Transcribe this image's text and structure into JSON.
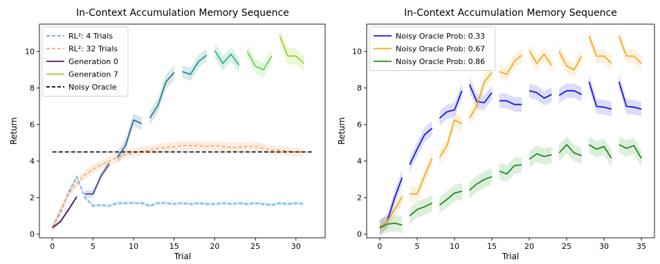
{
  "chart_data": [
    {
      "type": "line",
      "title": "In-Context Accumulation Memory Sequence",
      "xlabel": "Trial",
      "ylabel": "Return",
      "xlim": [
        -1.6,
        33.6
      ],
      "ylim": [
        -0.2,
        11.5
      ],
      "xticks": [
        0,
        5,
        10,
        15,
        20,
        25,
        30
      ],
      "yticks": [
        0,
        2,
        4,
        6,
        8,
        10
      ],
      "grid": false,
      "legend_position": "top-left",
      "legend": [
        {
          "label": "RL²: 4 Trials",
          "color": "#5aa9e6",
          "style": "dashed"
        },
        {
          "label": "RL²: 32 Trials",
          "color": "#f5a46a",
          "style": "dashed"
        },
        {
          "label": "Generation 0",
          "color": "#4b1a5a",
          "style": "solid"
        },
        {
          "label": "Generation 7",
          "color": "#9bd12a",
          "style": "solid"
        },
        {
          "label": "Noisy Oracle",
          "color": "#000000",
          "style": "dashed"
        }
      ],
      "series": [
        {
          "name": "RL²: 4 Trials",
          "color": "#5aa9e6",
          "dash": "5,3",
          "width": 1.6,
          "x": [
            0,
            1,
            2,
            3,
            4,
            5,
            6,
            7,
            8,
            9,
            10,
            11,
            12,
            13,
            14,
            15,
            16,
            17,
            18,
            19,
            20,
            21,
            22,
            23,
            24,
            25,
            26,
            27,
            28,
            29,
            30,
            31
          ],
          "y": [
            0.4,
            1.2,
            2.3,
            3.15,
            2.0,
            1.55,
            1.6,
            1.55,
            1.7,
            1.7,
            1.7,
            1.7,
            1.55,
            1.7,
            1.7,
            1.65,
            1.7,
            1.65,
            1.7,
            1.65,
            1.65,
            1.7,
            1.65,
            1.7,
            1.65,
            1.7,
            1.65,
            1.6,
            1.7,
            1.65,
            1.7,
            1.65
          ],
          "band": 0.1
        },
        {
          "name": "RL²: 32 Trials",
          "color": "#f5a46a",
          "dash": "5,3",
          "width": 1.6,
          "x": [
            0,
            1,
            2,
            3,
            4,
            5,
            6,
            7,
            8,
            9,
            10,
            11,
            12,
            13,
            14,
            15,
            16,
            17,
            18,
            19,
            20,
            21,
            22,
            23,
            24,
            25,
            26,
            27,
            28,
            29,
            30,
            31
          ],
          "y": [
            0.4,
            1.3,
            2.2,
            2.8,
            3.25,
            3.55,
            3.8,
            4.0,
            4.2,
            4.35,
            4.45,
            4.55,
            4.6,
            4.7,
            4.75,
            4.8,
            4.85,
            4.85,
            4.85,
            4.8,
            4.85,
            4.8,
            4.75,
            4.75,
            4.8,
            4.8,
            4.7,
            4.6,
            4.6,
            4.55,
            4.5,
            4.5
          ],
          "band": 0.25
        },
        {
          "name": "Noisy Oracle",
          "color": "#000000",
          "dash": "6,3",
          "width": 1.6,
          "x": [
            0,
            32
          ],
          "y": [
            4.5,
            4.5
          ],
          "band": 0
        }
      ],
      "generations": [
        {
          "x": [
            0,
            1,
            2,
            3
          ],
          "y": [
            0.35,
            0.7,
            1.35,
            2.05
          ],
          "color": "#4b1a5a",
          "band": 0.1
        },
        {
          "x": [
            4,
            5,
            6,
            7
          ],
          "y": [
            2.2,
            2.2,
            3.2,
            3.85
          ],
          "color": "#3d4a8c",
          "band": 0.2
        },
        {
          "x": [
            8,
            9,
            10,
            11
          ],
          "y": [
            4.2,
            4.85,
            6.25,
            6.05
          ],
          "color": "#2c6b94",
          "band": 0.35
        },
        {
          "x": [
            12,
            13,
            14,
            15
          ],
          "y": [
            6.35,
            7.05,
            8.35,
            8.85
          ],
          "color": "#1f7f8c",
          "band": 0.4
        },
        {
          "x": [
            16,
            17,
            18,
            19
          ],
          "y": [
            8.9,
            8.75,
            9.45,
            9.8
          ],
          "color": "#21918c",
          "band": 0.35
        },
        {
          "x": [
            20,
            21,
            22,
            23
          ],
          "y": [
            10.05,
            9.35,
            9.85,
            9.25
          ],
          "color": "#2fb47c",
          "band": 0.4
        },
        {
          "x": [
            24,
            25,
            26,
            27
          ],
          "y": [
            10.0,
            9.2,
            9.0,
            9.75
          ],
          "color": "#6cce59",
          "band": 0.4
        },
        {
          "x": [
            28,
            29,
            30,
            31
          ],
          "y": [
            10.85,
            9.75,
            9.75,
            9.35
          ],
          "color": "#9bd12a",
          "band": 0.45
        }
      ]
    },
    {
      "type": "line",
      "title": "In-Context Accumulation Memory Sequence",
      "xlabel": "Trial",
      "ylabel": "Return",
      "xlim": [
        -1.75,
        36.75
      ],
      "ylim": [
        -0.2,
        11.5
      ],
      "xticks": [
        0,
        5,
        10,
        15,
        20,
        25,
        30,
        35
      ],
      "yticks": [
        0,
        2,
        4,
        6,
        8,
        10
      ],
      "grid": false,
      "legend_position": "top-left",
      "legend": [
        {
          "label": "Noisy Oracle Prob: 0.33",
          "color": "#1414e6",
          "style": "solid"
        },
        {
          "label": "Noisy Oracle Prob: 0.67",
          "color": "#f5a623",
          "style": "solid"
        },
        {
          "label": "Noisy Oracle Prob: 0.86",
          "color": "#1a8c1a",
          "style": "solid"
        }
      ],
      "series": [
        {
          "name": "Noisy Oracle Prob: 0.33",
          "color": "#1414e6",
          "band": 0.4,
          "segments": [
            {
              "x": [
                0,
                1,
                2,
                3
              ],
              "y": [
                0.35,
                0.7,
                2.0,
                3.1
              ]
            },
            {
              "x": [
                4,
                5,
                6,
                7
              ],
              "y": [
                3.8,
                4.65,
                5.45,
                5.8
              ]
            },
            {
              "x": [
                8,
                9,
                10,
                11
              ],
              "y": [
                6.35,
                6.7,
                6.8,
                7.85
              ]
            },
            {
              "x": [
                12,
                13,
                14,
                15
              ],
              "y": [
                8.2,
                7.25,
                7.2,
                7.75
              ]
            },
            {
              "x": [
                16,
                17,
                18,
                19
              ],
              "y": [
                7.3,
                7.3,
                7.1,
                7.1
              ]
            },
            {
              "x": [
                20,
                21,
                22,
                23
              ],
              "y": [
                7.85,
                7.75,
                7.45,
                7.65
              ]
            },
            {
              "x": [
                24,
                25,
                26,
                27
              ],
              "y": [
                7.6,
                7.85,
                7.85,
                7.65
              ]
            },
            {
              "x": [
                28,
                29,
                30,
                31
              ],
              "y": [
                8.35,
                7.0,
                6.95,
                6.85
              ]
            },
            {
              "x": [
                32,
                33,
                34,
                35
              ],
              "y": [
                8.35,
                7.0,
                6.95,
                6.85
              ]
            }
          ]
        },
        {
          "name": "Noisy Oracle Prob: 0.67",
          "color": "#f5a623",
          "band": 0.4,
          "segments": [
            {
              "x": [
                0,
                1,
                2,
                3
              ],
              "y": [
                0.35,
                0.7,
                1.35,
                2.05
              ]
            },
            {
              "x": [
                4,
                5,
                6,
                7
              ],
              "y": [
                2.2,
                2.2,
                3.2,
                4.15
              ]
            },
            {
              "x": [
                8,
                9,
                10,
                11
              ],
              "y": [
                4.2,
                4.85,
                6.25,
                6.05
              ]
            },
            {
              "x": [
                12,
                13,
                14,
                15
              ],
              "y": [
                6.35,
                7.05,
                8.35,
                8.85
              ]
            },
            {
              "x": [
                16,
                17,
                18,
                19
              ],
              "y": [
                8.9,
                8.75,
                9.45,
                9.8
              ]
            },
            {
              "x": [
                20,
                21,
                22,
                23
              ],
              "y": [
                10.05,
                9.35,
                9.85,
                9.25
              ]
            },
            {
              "x": [
                24,
                25,
                26,
                27
              ],
              "y": [
                10.0,
                9.2,
                9.0,
                9.75
              ]
            },
            {
              "x": [
                28,
                29,
                30,
                31
              ],
              "y": [
                10.85,
                9.75,
                9.75,
                9.35
              ]
            },
            {
              "x": [
                32,
                33,
                34,
                35
              ],
              "y": [
                10.85,
                9.75,
                9.75,
                9.35
              ]
            }
          ]
        },
        {
          "name": "Noisy Oracle Prob: 0.86",
          "color": "#1a8c1a",
          "band": 0.45,
          "segments": [
            {
              "x": [
                0,
                1,
                2,
                3
              ],
              "y": [
                0.35,
                0.55,
                0.6,
                0.5
              ]
            },
            {
              "x": [
                4,
                5,
                6,
                7
              ],
              "y": [
                1.0,
                1.35,
                1.5,
                1.7
              ]
            },
            {
              "x": [
                8,
                9,
                10,
                11
              ],
              "y": [
                1.6,
                1.9,
                2.25,
                2.35
              ]
            },
            {
              "x": [
                12,
                13,
                14,
                15
              ],
              "y": [
                2.4,
                2.75,
                3.0,
                3.15
              ]
            },
            {
              "x": [
                16,
                17,
                18,
                19
              ],
              "y": [
                3.45,
                3.3,
                3.75,
                3.8
              ]
            },
            {
              "x": [
                20,
                21,
                22,
                23
              ],
              "y": [
                4.1,
                4.4,
                4.25,
                4.35
              ]
            },
            {
              "x": [
                24,
                25,
                26,
                27
              ],
              "y": [
                4.45,
                4.9,
                4.45,
                4.3
              ]
            },
            {
              "x": [
                28,
                29,
                30,
                31
              ],
              "y": [
                4.9,
                4.65,
                4.8,
                4.15
              ]
            },
            {
              "x": [
                32,
                33,
                34,
                35
              ],
              "y": [
                4.9,
                4.7,
                4.85,
                4.15
              ]
            }
          ]
        }
      ]
    }
  ]
}
